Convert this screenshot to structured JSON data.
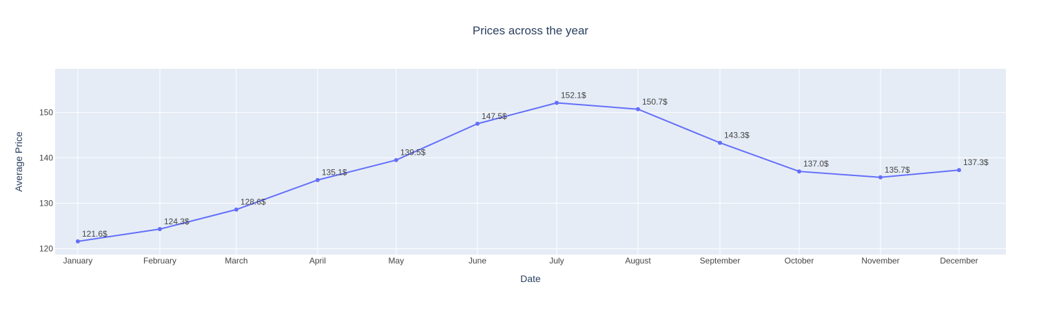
{
  "chart_data": {
    "type": "line",
    "title": "Prices across the year",
    "xlabel": "Date",
    "ylabel": "Average Price",
    "categories": [
      "January",
      "February",
      "March",
      "April",
      "May",
      "June",
      "July",
      "August",
      "September",
      "October",
      "November",
      "December"
    ],
    "values": [
      121.6,
      124.3,
      128.6,
      135.1,
      139.5,
      147.5,
      152.1,
      150.7,
      143.3,
      137.0,
      135.7,
      137.3
    ],
    "data_labels": [
      "121.6$",
      "124.3$",
      "128.6$",
      "135.1$",
      "139.5$",
      "147.5$",
      "152.1$",
      "150.7$",
      "143.3$",
      "137.0$",
      "135.7$",
      "137.3$"
    ],
    "yticks": [
      120,
      130,
      140,
      150
    ],
    "ylim": [
      118.7,
      159.6
    ],
    "grid": true,
    "legend": "none",
    "colors": {
      "line": "#636efa",
      "plot_background": "#e5ecf6",
      "grid": "#ffffff",
      "text": "#2a3f5f",
      "tick_text": "#444444"
    }
  }
}
